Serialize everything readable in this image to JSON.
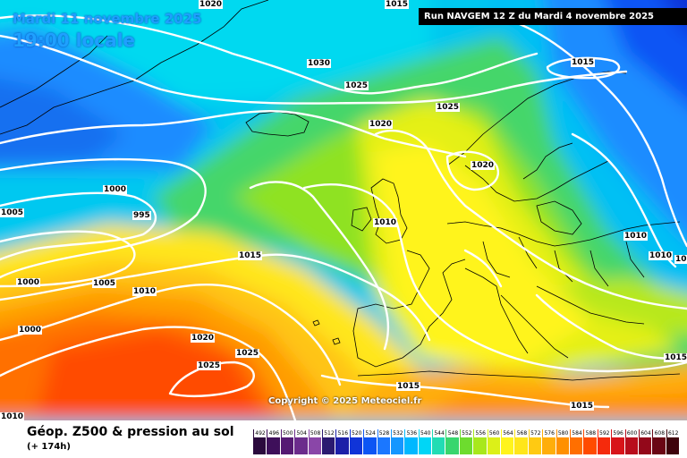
{
  "header": {
    "date": "Mardi 11 novembre 2025",
    "time": "19:00 locale",
    "run": "Run NAVGEM 12 Z du Mardi 4 novembre 2025"
  },
  "copyright": "Copyright © 2025 Meteociel.fr",
  "legend": {
    "title": "Géop. Z500 & pression au sol",
    "subtitle": "(+ 174h)",
    "scale": [
      {
        "v": "492",
        "c": "#2b0a3d"
      },
      {
        "v": "496",
        "c": "#3e0f5a"
      },
      {
        "v": "500",
        "c": "#551a73"
      },
      {
        "v": "504",
        "c": "#6b2c8c"
      },
      {
        "v": "508",
        "c": "#8a46a8"
      },
      {
        "v": "512",
        "c": "#2b1a70"
      },
      {
        "v": "516",
        "c": "#1c1fa8"
      },
      {
        "v": "520",
        "c": "#1034d8"
      },
      {
        "v": "524",
        "c": "#0c55f4"
      },
      {
        "v": "528",
        "c": "#1b77ff"
      },
      {
        "v": "532",
        "c": "#1597ff"
      },
      {
        "v": "536",
        "c": "#00b8ff"
      },
      {
        "v": "540",
        "c": "#00d6f6"
      },
      {
        "v": "544",
        "c": "#22dcb4"
      },
      {
        "v": "548",
        "c": "#38d66e"
      },
      {
        "v": "552",
        "c": "#6ddc2e"
      },
      {
        "v": "556",
        "c": "#a8e81c"
      },
      {
        "v": "560",
        "c": "#dcf018"
      },
      {
        "v": "564",
        "c": "#fff41c"
      },
      {
        "v": "568",
        "c": "#ffe61a"
      },
      {
        "v": "572",
        "c": "#ffca12"
      },
      {
        "v": "576",
        "c": "#ffae0a"
      },
      {
        "v": "580",
        "c": "#ff9000"
      },
      {
        "v": "584",
        "c": "#ff6f00"
      },
      {
        "v": "588",
        "c": "#ff4b00"
      },
      {
        "v": "592",
        "c": "#f52a0c"
      },
      {
        "v": "596",
        "c": "#d8141a"
      },
      {
        "v": "600",
        "c": "#b80d1c"
      },
      {
        "v": "604",
        "c": "#93081a"
      },
      {
        "v": "608",
        "c": "#6a0614"
      },
      {
        "v": "612",
        "c": "#3e030c"
      }
    ]
  },
  "isobars": [
    {
      "id": "1030",
      "label": "1030"
    },
    {
      "id": "1025a",
      "label": "1025"
    },
    {
      "id": "1025b",
      "label": "1025"
    },
    {
      "id": "1020a",
      "label": "1020"
    },
    {
      "id": "1020b",
      "label": "1020"
    },
    {
      "id": "1015a",
      "label": "1015"
    },
    {
      "id": "1000a",
      "label": "1000"
    },
    {
      "id": "1005a",
      "label": "1005"
    },
    {
      "id": "995",
      "label": "995"
    },
    {
      "id": "1010a",
      "label": "1010"
    },
    {
      "id": "1015b",
      "label": "1015"
    },
    {
      "id": "1010b",
      "label": "1010"
    },
    {
      "id": "1000b",
      "label": "1000"
    },
    {
      "id": "1005b",
      "label": "1005"
    },
    {
      "id": "1010c",
      "label": "1010"
    },
    {
      "id": "1000c",
      "label": "1000"
    },
    {
      "id": "1020c",
      "label": "1020"
    },
    {
      "id": "1025c",
      "label": "1025"
    },
    {
      "id": "1025d",
      "label": "1025"
    },
    {
      "id": "1015c",
      "label": "1015"
    },
    {
      "id": "1015d",
      "label": "1015"
    },
    {
      "id": "1010d",
      "label": "1010"
    },
    {
      "id": "1015e",
      "label": "1015"
    },
    {
      "id": "1015f",
      "label": "1015"
    },
    {
      "id": "1015g",
      "label": "1015"
    },
    {
      "id": "1010e",
      "label": "1010"
    },
    {
      "id": "1020top",
      "label": "1020"
    },
    {
      "id": "1015top",
      "label": "1015"
    }
  ]
}
